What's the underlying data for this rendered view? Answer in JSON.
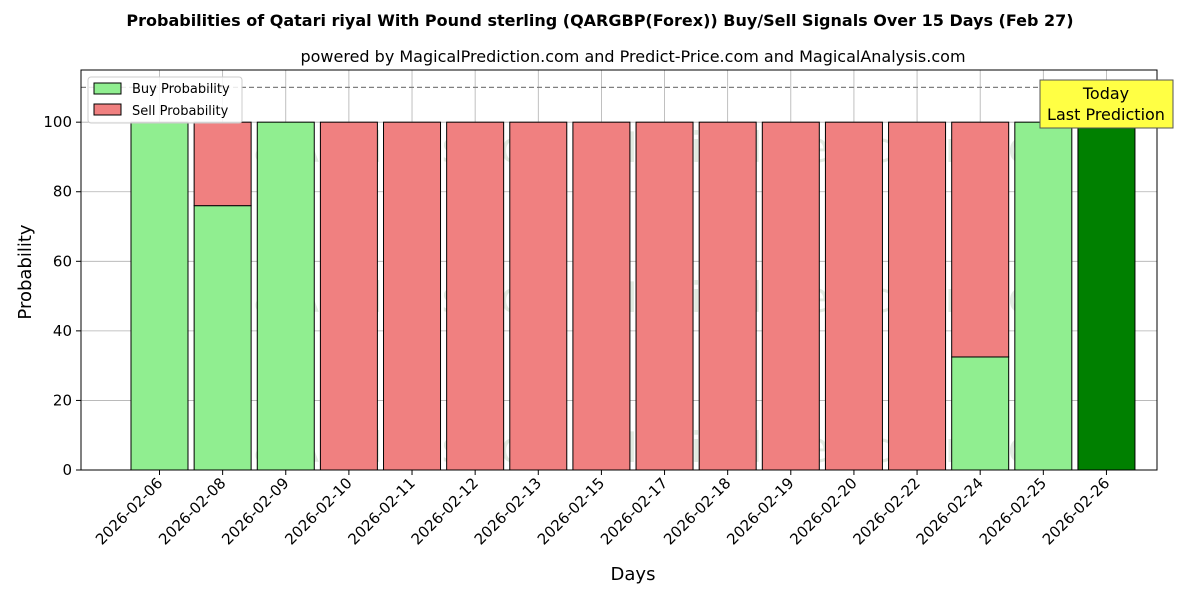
{
  "chart_data": {
    "type": "bar",
    "title": "Probabilities of Qatari riyal With Pound sterling (QARGBP(Forex)) Buy/Sell Signals Over 15 Days (Feb 27)",
    "subtitle": "powered by MagicalPrediction.com and Predict-Price.com and MagicalAnalysis.com",
    "xlabel": "Days",
    "ylabel": "Probability",
    "ylim": [
      0,
      115
    ],
    "yticks": [
      0,
      20,
      40,
      60,
      80,
      100
    ],
    "grid": true,
    "legend_placement": "top-left",
    "categories": [
      "2026-02-06",
      "2026-02-08",
      "2026-02-09",
      "2026-02-10",
      "2026-02-11",
      "2026-02-12",
      "2026-02-13",
      "2026-02-15",
      "2026-02-17",
      "2026-02-18",
      "2026-02-19",
      "2026-02-20",
      "2026-02-22",
      "2026-02-24",
      "2026-02-25",
      "2026-02-26"
    ],
    "series": [
      {
        "name": "Buy Probability",
        "color": "#90ee90",
        "values": [
          100,
          76,
          100,
          0,
          0,
          0,
          0,
          0,
          0,
          0,
          0,
          0,
          0,
          32.5,
          100,
          100
        ]
      },
      {
        "name": "Sell Probability",
        "color": "#f08080",
        "values": [
          0,
          24,
          0,
          100,
          100,
          100,
          100,
          100,
          100,
          100,
          100,
          100,
          100,
          67.5,
          0,
          0
        ]
      }
    ],
    "highlight": {
      "category": "2026-02-26",
      "color": "#008000"
    },
    "reference_line": {
      "y": 110,
      "style": "dashed",
      "color": "#808080"
    },
    "annotation": {
      "lines": [
        "Today",
        "Last Prediction"
      ],
      "background": "#ffff44",
      "placement": "top-right"
    },
    "watermarks": [
      "MagicalAnalysis.com",
      "MagicalPrediction.com"
    ]
  }
}
